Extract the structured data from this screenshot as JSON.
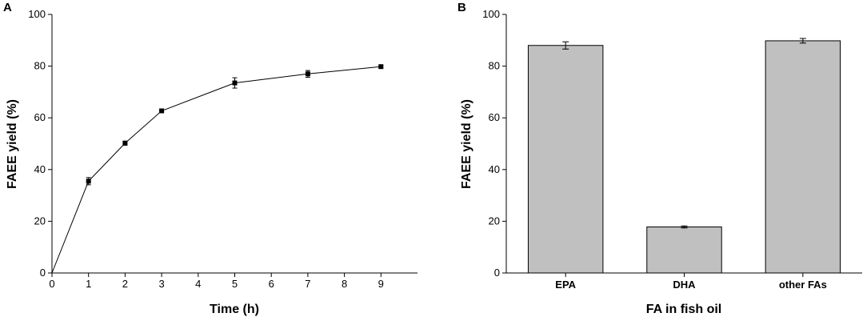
{
  "colors": {
    "bar_fill": "#c0c0c0",
    "bar_stroke": "#000000",
    "line": "#000000",
    "marker": "#000000"
  },
  "chart_data": [
    {
      "panel": "A",
      "type": "line",
      "xlabel": "Time (h)",
      "ylabel": "FAEE yield (%)",
      "xlim": [
        0,
        10
      ],
      "ylim": [
        0,
        100
      ],
      "xticks": [
        0,
        1,
        2,
        3,
        4,
        5,
        6,
        7,
        8,
        9
      ],
      "yticks": [
        0,
        20,
        40,
        60,
        80,
        100
      ],
      "x": [
        0,
        1,
        2,
        3,
        5,
        7,
        9
      ],
      "values": [
        0,
        35.5,
        50.2,
        62.7,
        73.5,
        77.0,
        79.8
      ],
      "errors": [
        0,
        1.4,
        0.8,
        0.4,
        2.0,
        1.3,
        0.5
      ],
      "grid": false,
      "markers": "square"
    },
    {
      "panel": "B",
      "type": "bar",
      "xlabel": "FA in fish oil",
      "ylabel": "FAEE yield (%)",
      "ylim": [
        0,
        100
      ],
      "yticks": [
        0,
        20,
        40,
        60,
        80,
        100
      ],
      "categories": [
        "EPA",
        "DHA",
        "other FAs"
      ],
      "values": [
        88.0,
        17.8,
        89.8
      ],
      "errors": [
        1.4,
        0.4,
        0.9
      ],
      "grid": false
    }
  ]
}
